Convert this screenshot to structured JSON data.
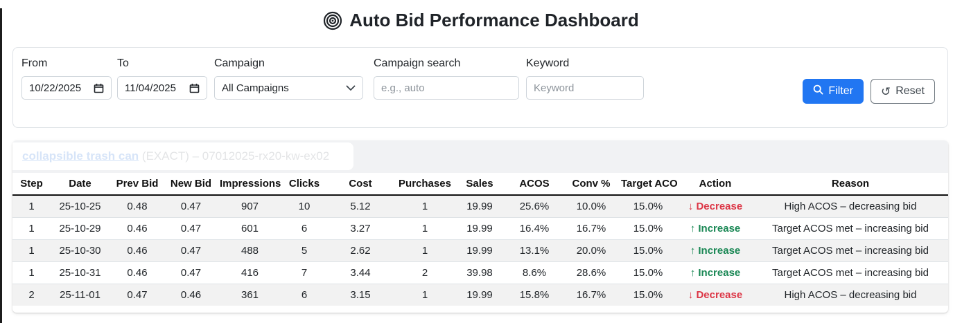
{
  "colors": {
    "accent": "#2176f2",
    "danger": "#dc3545",
    "success": "#198754",
    "stripe": "#f2f2f2",
    "results_header_bg": "#f1f2f4",
    "card_border": "#dee2e6"
  },
  "header": {
    "icon": "bullseye-icon",
    "title": "Auto Bid Performance Dashboard"
  },
  "filters": {
    "from": {
      "label": "From",
      "value": "10/22/2025",
      "icon": "calendar-icon"
    },
    "to": {
      "label": "To",
      "value": "11/04/2025",
      "icon": "calendar-icon"
    },
    "campaign": {
      "label": "Campaign",
      "value": "All Campaigns",
      "icon": "chevron-down-icon"
    },
    "campaign_search": {
      "label": "Campaign search",
      "placeholder": "e.g., auto"
    },
    "keyword": {
      "label": "Keyword",
      "placeholder": "Keyword"
    },
    "filter_button": {
      "label": "Filter",
      "icon": "search-icon"
    },
    "reset_button": {
      "label": "Reset",
      "glyph": "↺",
      "icon": "reset-icon"
    }
  },
  "keyword_header": {
    "link_text": "collapsible trash can",
    "suffix": " (EXACT) – 07012025-rx20-kw-ex02"
  },
  "table": {
    "columns": [
      "Step",
      "Date",
      "Prev Bid",
      "New Bid",
      "Impressions",
      "Clicks",
      "Cost",
      "Purchases",
      "Sales",
      "ACOS",
      "Conv %",
      "Target ACOS",
      "Action",
      "Reason"
    ],
    "column_keys": [
      "step",
      "date",
      "prev_bid",
      "new_bid",
      "impressions",
      "clicks",
      "cost",
      "purchases",
      "sales",
      "acos",
      "conv_pct",
      "target_acos",
      "action",
      "reason"
    ],
    "rows": [
      {
        "step": "1",
        "date": "25-10-25",
        "prev_bid": "0.48",
        "new_bid": "0.47",
        "impressions": "907",
        "clicks": "10",
        "cost": "5.12",
        "purchases": "1",
        "sales": "19.99",
        "acos": "25.6%",
        "conv_pct": "10.0%",
        "target_acos": "15.0%",
        "action": {
          "direction": "down",
          "arrow": "↓",
          "label": "Decrease"
        },
        "reason": "High ACOS – decreasing bid"
      },
      {
        "step": "1",
        "date": "25-10-29",
        "prev_bid": "0.46",
        "new_bid": "0.47",
        "impressions": "601",
        "clicks": "6",
        "cost": "3.27",
        "purchases": "1",
        "sales": "19.99",
        "acos": "16.4%",
        "conv_pct": "16.7%",
        "target_acos": "15.0%",
        "action": {
          "direction": "up",
          "arrow": "↑",
          "label": "Increase"
        },
        "reason": "Target ACOS met – increasing bid"
      },
      {
        "step": "1",
        "date": "25-10-30",
        "prev_bid": "0.46",
        "new_bid": "0.47",
        "impressions": "488",
        "clicks": "5",
        "cost": "2.62",
        "purchases": "1",
        "sales": "19.99",
        "acos": "13.1%",
        "conv_pct": "20.0%",
        "target_acos": "15.0%",
        "action": {
          "direction": "up",
          "arrow": "↑",
          "label": "Increase"
        },
        "reason": "Target ACOS met – increasing bid"
      },
      {
        "step": "1",
        "date": "25-10-31",
        "prev_bid": "0.46",
        "new_bid": "0.47",
        "impressions": "416",
        "clicks": "7",
        "cost": "3.44",
        "purchases": "2",
        "sales": "39.98",
        "acos": "8.6%",
        "conv_pct": "28.6%",
        "target_acos": "15.0%",
        "action": {
          "direction": "up",
          "arrow": "↑",
          "label": "Increase"
        },
        "reason": "Target ACOS met – increasing bid"
      },
      {
        "step": "2",
        "date": "25-11-01",
        "prev_bid": "0.47",
        "new_bid": "0.46",
        "impressions": "361",
        "clicks": "6",
        "cost": "3.15",
        "purchases": "1",
        "sales": "19.99",
        "acos": "15.8%",
        "conv_pct": "16.7%",
        "target_acos": "15.0%",
        "action": {
          "direction": "down",
          "arrow": "↓",
          "label": "Decrease"
        },
        "reason": "High ACOS – decreasing bid"
      }
    ]
  }
}
